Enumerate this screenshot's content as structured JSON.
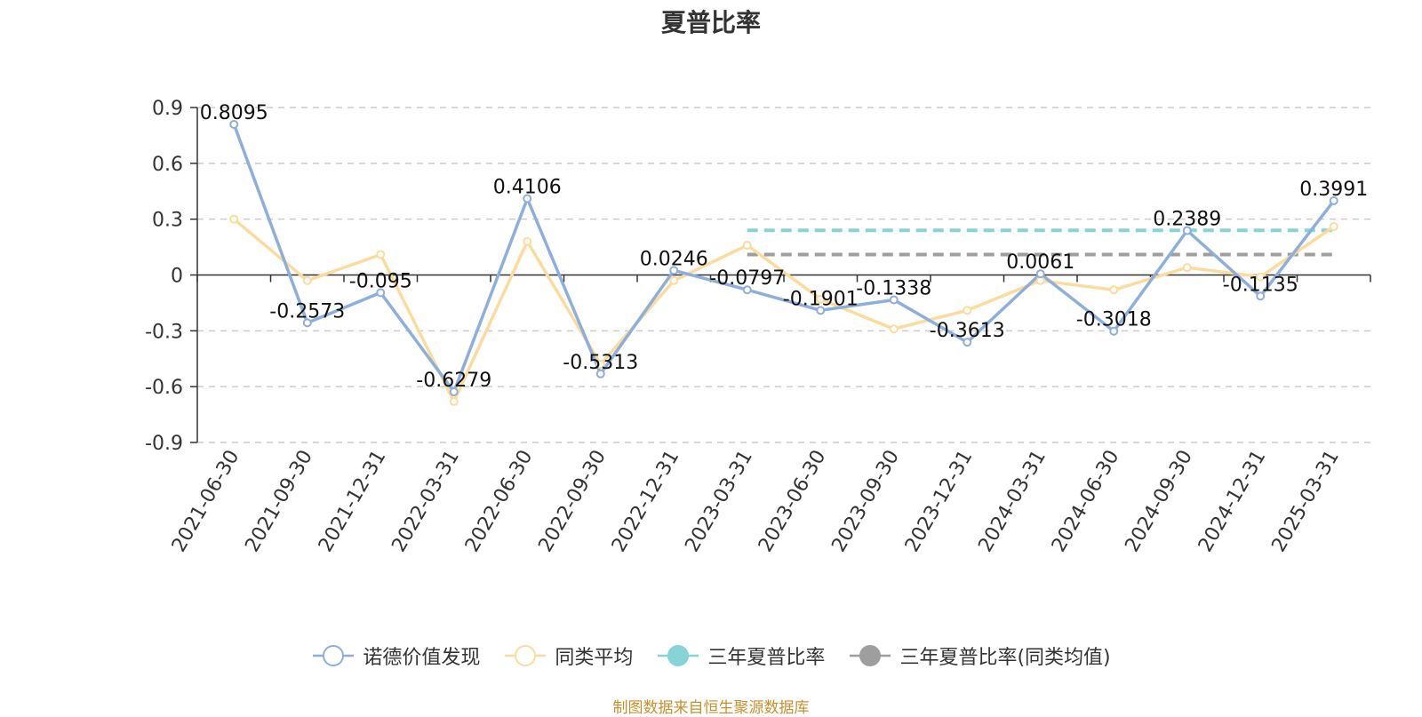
{
  "chart_data": {
    "type": "line",
    "title": "夏普比率",
    "categories": [
      "2021-06-30",
      "2021-09-30",
      "2021-12-31",
      "2022-03-31",
      "2022-06-30",
      "2022-09-30",
      "2022-12-31",
      "2023-03-31",
      "2023-06-30",
      "2023-09-30",
      "2023-12-31",
      "2024-03-31",
      "2024-06-30",
      "2024-09-30",
      "2024-12-31",
      "2025-03-31"
    ],
    "yticks": [
      "0.9",
      "0.6",
      "0.3",
      "0",
      "-0.3",
      "-0.6",
      "-0.9"
    ],
    "ylim": [
      -0.9,
      0.9
    ],
    "grid": true,
    "legend_position": "bottom",
    "series": [
      {
        "name": "诺德价值发现",
        "color": "#8eaedb",
        "values": [
          0.8095,
          -0.2573,
          -0.095,
          -0.6279,
          0.4106,
          -0.5313,
          0.0246,
          -0.0797,
          -0.1901,
          -0.1338,
          -0.3613,
          0.0061,
          -0.3018,
          0.2389,
          -0.1135,
          0.3991
        ],
        "labels": [
          "0.8095",
          "-0.2573",
          "-0.095",
          "-0.6279",
          "0.4106",
          "-0.5313",
          "0.0246",
          "-0.0797",
          "-0.1901",
          "-0.1338",
          "-0.3613",
          "0.0061",
          "-0.3018",
          "0.2389",
          "-0.1135",
          "0.3991"
        ]
      },
      {
        "name": "同类平均",
        "color": "#fbdc9e",
        "values": [
          0.3,
          -0.03,
          0.11,
          -0.68,
          0.18,
          -0.48,
          -0.03,
          0.16,
          -0.13,
          -0.29,
          -0.19,
          -0.03,
          -0.08,
          0.04,
          -0.01,
          0.26
        ]
      },
      {
        "name": "三年夏普比率",
        "color": "#86d3d8",
        "value": 0.24,
        "from_index": 7,
        "to_index": 15
      },
      {
        "name": "三年夏普比率(同类均值)",
        "color": "#9e9e9e",
        "value": 0.11,
        "from_index": 7,
        "to_index": 15
      }
    ],
    "source": "制图数据来自恒生聚源数据库"
  }
}
